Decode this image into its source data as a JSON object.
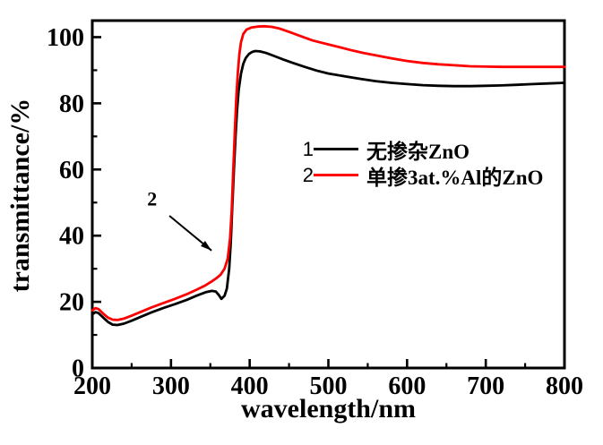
{
  "chart_data": {
    "type": "line",
    "title": "",
    "xlabel": "wavelength/nm",
    "ylabel": "transmittance/%",
    "xlim": [
      200,
      800
    ],
    "ylim": [
      0,
      105
    ],
    "x_major_ticks": [
      200,
      300,
      400,
      500,
      600,
      700,
      800
    ],
    "x_minor_step": 50,
    "y_major_ticks": [
      0,
      20,
      40,
      60,
      80,
      100
    ],
    "y_minor_step": 10,
    "grid": false,
    "legend_position": "center-right",
    "axis_color": "#000000",
    "series": [
      {
        "index": "1",
        "name": "无掺杂ZnO",
        "color": "#000000",
        "points": [
          [
            200,
            16.2
          ],
          [
            204,
            16.9
          ],
          [
            208,
            16.6
          ],
          [
            214,
            15.2
          ],
          [
            220,
            13.9
          ],
          [
            226,
            13.1
          ],
          [
            232,
            13.0
          ],
          [
            240,
            13.4
          ],
          [
            250,
            14.3
          ],
          [
            262,
            15.5
          ],
          [
            275,
            16.8
          ],
          [
            290,
            18.1
          ],
          [
            305,
            19.3
          ],
          [
            320,
            20.6
          ],
          [
            333,
            21.9
          ],
          [
            344,
            22.9
          ],
          [
            352,
            23.3
          ],
          [
            357,
            23.1
          ],
          [
            361,
            22.0
          ],
          [
            364,
            20.9
          ],
          [
            368,
            21.8
          ],
          [
            371,
            24.0
          ],
          [
            374,
            30.0
          ],
          [
            376,
            38.0
          ],
          [
            378,
            49.0
          ],
          [
            380,
            60.0
          ],
          [
            382,
            70.0
          ],
          [
            384,
            78.0
          ],
          [
            386,
            84.0
          ],
          [
            389,
            89.0
          ],
          [
            392,
            92.0
          ],
          [
            395,
            93.7
          ],
          [
            399,
            94.9
          ],
          [
            403,
            95.5
          ],
          [
            407,
            95.8
          ],
          [
            413,
            95.7
          ],
          [
            421,
            95.2
          ],
          [
            431,
            94.3
          ],
          [
            443,
            93.2
          ],
          [
            455,
            92.2
          ],
          [
            470,
            91.0
          ],
          [
            485,
            89.9
          ],
          [
            500,
            89.0
          ],
          [
            520,
            88.2
          ],
          [
            540,
            87.4
          ],
          [
            560,
            86.7
          ],
          [
            580,
            86.2
          ],
          [
            600,
            85.8
          ],
          [
            620,
            85.5
          ],
          [
            640,
            85.3
          ],
          [
            660,
            85.2
          ],
          [
            680,
            85.2
          ],
          [
            700,
            85.3
          ],
          [
            720,
            85.4
          ],
          [
            740,
            85.6
          ],
          [
            760,
            85.8
          ],
          [
            780,
            86.0
          ],
          [
            800,
            86.2
          ]
        ]
      },
      {
        "index": "2",
        "name": "单掺3at.%Al的ZnO",
        "color": "#fe0000",
        "points": [
          [
            200,
            17.4
          ],
          [
            204,
            18.1
          ],
          [
            208,
            17.8
          ],
          [
            214,
            16.4
          ],
          [
            220,
            15.2
          ],
          [
            226,
            14.6
          ],
          [
            232,
            14.5
          ],
          [
            240,
            14.9
          ],
          [
            250,
            15.8
          ],
          [
            262,
            17.0
          ],
          [
            275,
            18.3
          ],
          [
            290,
            19.6
          ],
          [
            305,
            20.9
          ],
          [
            320,
            22.3
          ],
          [
            333,
            23.7
          ],
          [
            344,
            25.0
          ],
          [
            352,
            26.2
          ],
          [
            358,
            27.2
          ],
          [
            363,
            28.2
          ],
          [
            368,
            30.0
          ],
          [
            372,
            33.0
          ],
          [
            375,
            39.0
          ],
          [
            377,
            47.0
          ],
          [
            379,
            59.0
          ],
          [
            381,
            71.0
          ],
          [
            383,
            81.5
          ],
          [
            385,
            89.5
          ],
          [
            387,
            95.0
          ],
          [
            389,
            98.5
          ],
          [
            392,
            101.0
          ],
          [
            396,
            102.3
          ],
          [
            402,
            102.9
          ],
          [
            410,
            103.2
          ],
          [
            418,
            103.3
          ],
          [
            428,
            103.1
          ],
          [
            438,
            102.6
          ],
          [
            450,
            101.6
          ],
          [
            465,
            100.3
          ],
          [
            480,
            99.0
          ],
          [
            500,
            97.8
          ],
          [
            515,
            96.9
          ],
          [
            530,
            96.0
          ],
          [
            545,
            95.2
          ],
          [
            560,
            94.5
          ],
          [
            580,
            93.6
          ],
          [
            600,
            92.8
          ],
          [
            620,
            92.2
          ],
          [
            640,
            91.8
          ],
          [
            660,
            91.5
          ],
          [
            680,
            91.2
          ],
          [
            700,
            91.1
          ],
          [
            720,
            91.0
          ],
          [
            740,
            91.0
          ],
          [
            760,
            91.0
          ],
          [
            780,
            91.0
          ],
          [
            800,
            91.0
          ]
        ]
      }
    ],
    "annotation": {
      "text": "2",
      "text_xy": [
        276,
        51
      ],
      "arrow_from": [
        298,
        46
      ],
      "arrow_to": [
        351.5,
        35.5
      ]
    }
  }
}
